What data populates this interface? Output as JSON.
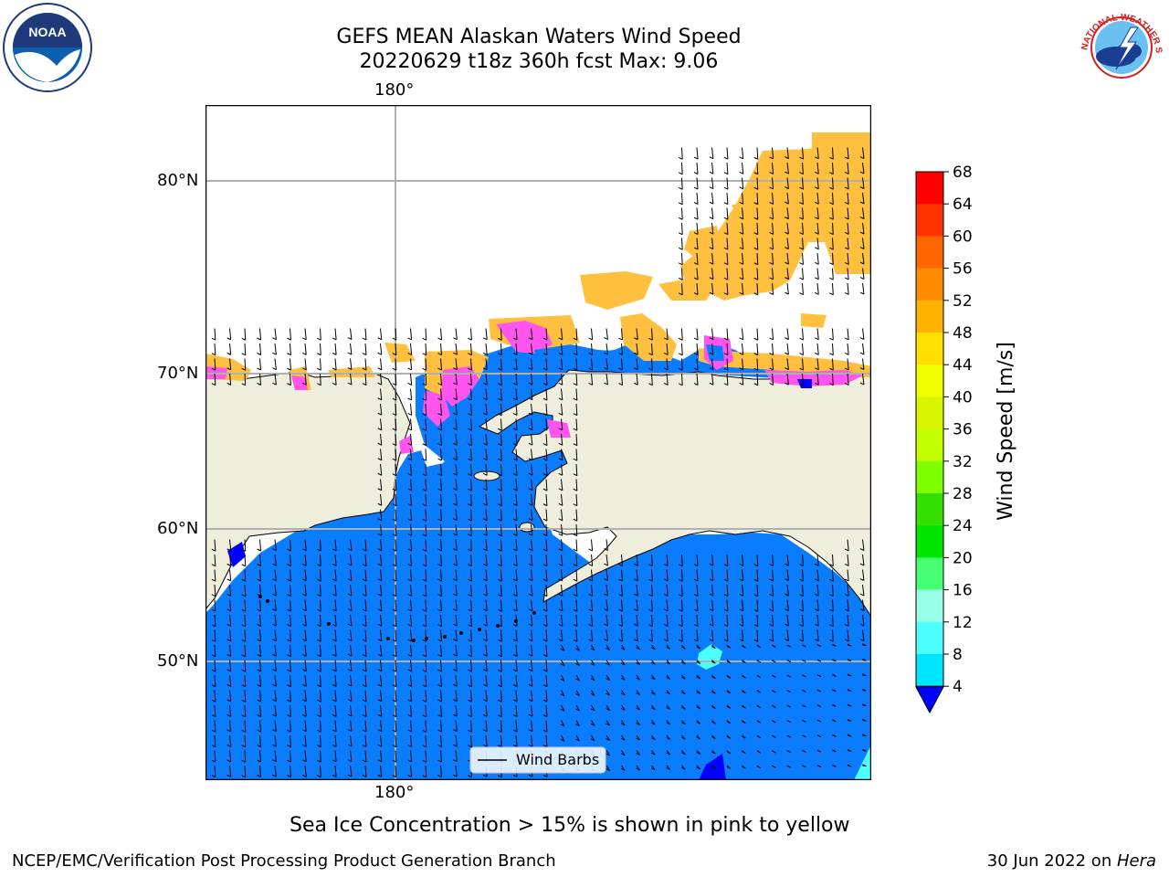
{
  "header": {
    "title_line1": "GEFS MEAN Alaskan Waters Wind Speed",
    "title_line2": "20220629 t18z 360h fcst   Max: 9.06"
  },
  "logos": {
    "left": {
      "text": "NOAA",
      "icon": "noaa-logo"
    },
    "right": {
      "text": "NATIONAL WEATHER SERVICE",
      "icon": "nws-logo"
    }
  },
  "map": {
    "lon_label_top": "180°",
    "lon_label_bottom": "180°",
    "lat_labels": [
      "80°N",
      "70°N",
      "60°N",
      "50°N"
    ],
    "legend_label": "Wind Barbs",
    "colors": {
      "ocean": "#0a7dff",
      "land": "#efeedc",
      "ice_pink": "#ff55ee",
      "ice_orange": "#ffc040",
      "grid": "#b0b0b0"
    }
  },
  "colorbar": {
    "label": "Wind Speed [m/s]",
    "ticks": [
      "68",
      "64",
      "60",
      "56",
      "52",
      "48",
      "44",
      "40",
      "36",
      "32",
      "28",
      "24",
      "20",
      "16",
      "12",
      "8",
      "4"
    ],
    "colors": [
      "#ff0000",
      "#ff3300",
      "#ff6600",
      "#ff8c00",
      "#ffb300",
      "#ffe000",
      "#f2ff00",
      "#d8f500",
      "#c2ff00",
      "#80ff00",
      "#35e000",
      "#00e400",
      "#46ff73",
      "#99ffe6",
      "#4dffff",
      "#00e5ff",
      "#0a7dff"
    ],
    "under_color": "#0000ff"
  },
  "caption": "Sea Ice Concentration > 15% is shown in pink to yellow",
  "footer": {
    "left": "NCEP/EMC/Verification Post Processing Product Generation Branch",
    "right_date": "30 Jun 2022 on ",
    "right_machine": "Hera"
  }
}
